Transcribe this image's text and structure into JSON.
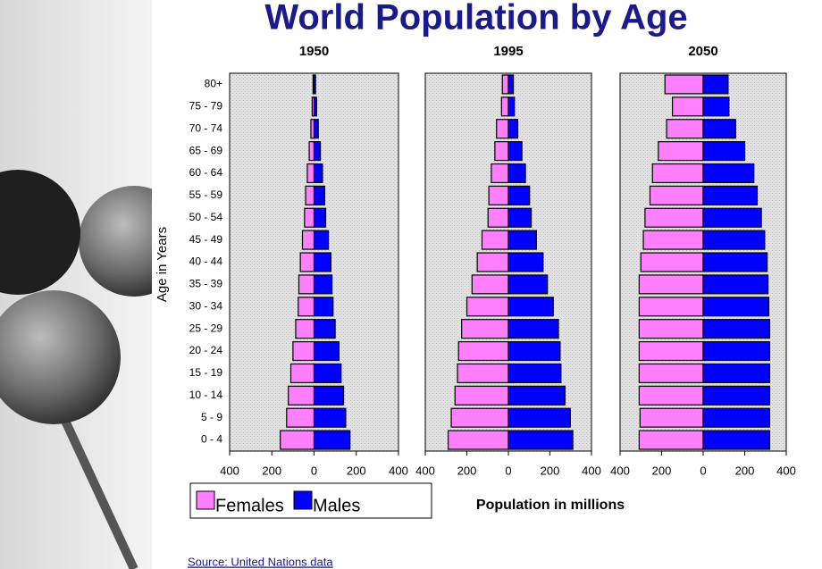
{
  "title": "World Population by Age",
  "y_label": "Age in Years",
  "x_label": "Population in millions",
  "source": "Source:  United Nations data",
  "chart_data": [
    {
      "type": "pyramid",
      "title": "1950",
      "categories": [
        "0 - 4",
        "5 - 9",
        "10 - 14",
        "15 - 19",
        "20 - 24",
        "25 - 29",
        "30 - 34",
        "35 - 39",
        "40 - 44",
        "45 - 49",
        "50 - 54",
        "55 - 59",
        "60 - 64",
        "65 - 69",
        "70 - 74",
        "75 - 79",
        "80+"
      ],
      "series": [
        {
          "name": "Females",
          "color": "#ff80ff",
          "values": [
            -160,
            -130,
            -122,
            -110,
            -100,
            -87,
            -75,
            -72,
            -65,
            -55,
            -45,
            -40,
            -32,
            -23,
            -15,
            -9,
            -5
          ]
        },
        {
          "name": "Males",
          "color": "#0000ff",
          "values": [
            170,
            150,
            140,
            128,
            118,
            100,
            90,
            85,
            80,
            68,
            55,
            50,
            40,
            30,
            20,
            12,
            7
          ]
        }
      ],
      "xlim": [
        -400,
        400
      ],
      "xticks": [
        {
          "value": -400,
          "label": "400"
        },
        {
          "value": -200,
          "label": "200"
        },
        0,
        200,
        400
      ]
    },
    {
      "type": "pyramid",
      "title": "1995",
      "categories": [
        "0 - 4",
        "5 - 9",
        "10 - 14",
        "15 - 19",
        "20 - 24",
        "25 - 29",
        "30 - 34",
        "35 - 39",
        "40 - 44",
        "45 - 49",
        "50 - 54",
        "55 - 59",
        "60 - 64",
        "65 - 69",
        "70 - 74",
        "75 - 79",
        "80+"
      ],
      "series": [
        {
          "name": "Females",
          "color": "#ff80ff",
          "values": [
            -290,
            -275,
            -257,
            -245,
            -240,
            -225,
            -200,
            -175,
            -150,
            -127,
            -98,
            -94,
            -82,
            -65,
            -57,
            -33,
            -29
          ]
        },
        {
          "name": "Males",
          "color": "#0000ff",
          "values": [
            310,
            298,
            273,
            253,
            249,
            241,
            216,
            188,
            167,
            135,
            110,
            102,
            82,
            65,
            45,
            29,
            24
          ]
        }
      ],
      "xlim": [
        -400,
        400
      ],
      "xticks": [
        {
          "value": -400,
          "label": "400"
        },
        {
          "value": -200,
          "label": "200"
        },
        0,
        200,
        400
      ]
    },
    {
      "type": "pyramid",
      "title": "2050",
      "categories": [
        "0 - 4",
        "5 - 9",
        "10 - 14",
        "15 - 19",
        "20 - 24",
        "25 - 29",
        "30 - 34",
        "35 - 39",
        "40 - 44",
        "45 - 49",
        "50 - 54",
        "55 - 59",
        "60 - 64",
        "65 - 69",
        "70 - 74",
        "75 - 79",
        "80+"
      ],
      "series": [
        {
          "name": "Females",
          "color": "#ff80ff",
          "values": [
            -308,
            -304,
            -308,
            -308,
            -308,
            -308,
            -308,
            -308,
            -300,
            -288,
            -280,
            -256,
            -244,
            -216,
            -176,
            -148,
            -184
          ]
        },
        {
          "name": "Males",
          "color": "#0000ff",
          "values": [
            320,
            320,
            320,
            320,
            320,
            320,
            316,
            312,
            308,
            296,
            280,
            260,
            244,
            200,
            156,
            124,
            120
          ]
        }
      ],
      "xlim": [
        -400,
        400
      ],
      "xticks": [
        {
          "value": -400,
          "label": "400"
        },
        {
          "value": -200,
          "label": "200"
        },
        0,
        200,
        400
      ]
    }
  ]
}
